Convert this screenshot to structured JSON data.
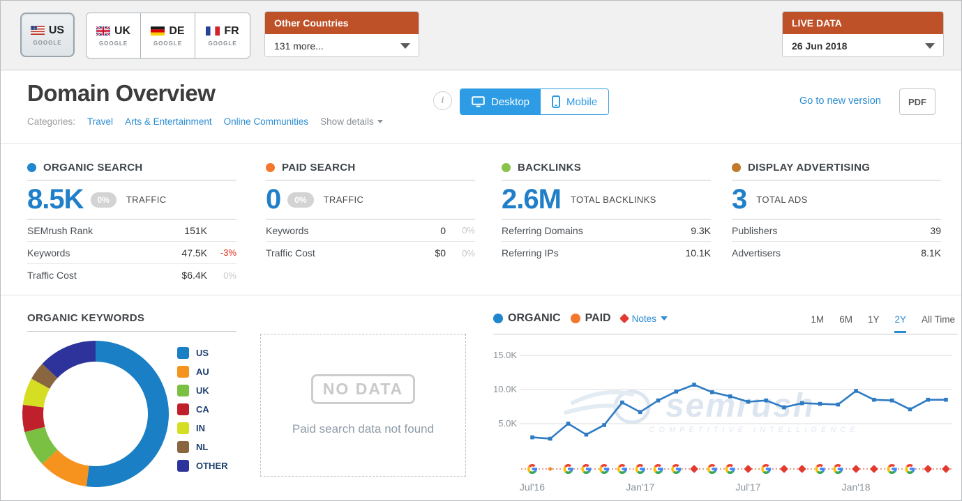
{
  "icons": {
    "info": "i"
  },
  "top_bar": {
    "tabs": [
      {
        "code": "US",
        "engine": "GOOGLE",
        "flag": "us",
        "selected": true
      },
      {
        "code": "UK",
        "engine": "GOOGLE",
        "flag": "uk",
        "selected": false
      },
      {
        "code": "DE",
        "engine": "GOOGLE",
        "flag": "de",
        "selected": false
      },
      {
        "code": "FR",
        "engine": "GOOGLE",
        "flag": "fr",
        "selected": false
      }
    ],
    "other_countries": {
      "title": "Other Countries",
      "value": "131 more..."
    },
    "live_data": {
      "title": "LIVE DATA",
      "value": "26 Jun 2018"
    }
  },
  "header": {
    "title": "Domain Overview",
    "categories_label": "Categories:",
    "categories": [
      "Travel",
      "Arts & Entertainment",
      "Online Communities"
    ],
    "show_details": "Show details",
    "device_toggle": {
      "desktop": "Desktop",
      "mobile": "Mobile",
      "selected": "Desktop"
    },
    "go_to_new_version": "Go to new version",
    "pdf_label": "PDF"
  },
  "metrics": [
    {
      "title": "ORGANIC SEARCH",
      "dot_color": "#2087cc",
      "value": "8.5K",
      "badge": "0%",
      "value_label": "TRAFFIC",
      "rows": [
        {
          "label": "SEMrush Rank",
          "value": "151K",
          "change": "",
          "change_color": ""
        },
        {
          "label": "Keywords",
          "value": "47.5K",
          "change": "-3%",
          "change_color": "#e0301e"
        },
        {
          "label": "Traffic Cost",
          "value": "$6.4K",
          "change": "0%",
          "change_color": "#c7c7c7"
        }
      ]
    },
    {
      "title": "PAID SEARCH",
      "dot_color": "#f4772e",
      "value": "0",
      "badge": "0%",
      "value_label": "TRAFFIC",
      "rows": [
        {
          "label": "Keywords",
          "value": "0",
          "change": "0%",
          "change_color": "#c7c7c7"
        },
        {
          "label": "Traffic Cost",
          "value": "$0",
          "change": "0%",
          "change_color": "#c7c7c7"
        }
      ]
    },
    {
      "title": "BACKLINKS",
      "dot_color": "#8bc34a",
      "value": "2.6M",
      "badge": null,
      "value_label": "TOTAL BACKLINKS",
      "rows": [
        {
          "label": "Referring Domains",
          "value": "9.3K",
          "change": null
        },
        {
          "label": "Referring IPs",
          "value": "10.1K",
          "change": null
        }
      ]
    },
    {
      "title": "DISPLAY ADVERTISING",
      "dot_color": "#c07a2b",
      "value": "3",
      "badge": null,
      "value_label": "TOTAL ADS",
      "rows": [
        {
          "label": "Publishers",
          "value": "39",
          "change": null
        },
        {
          "label": "Advertisers",
          "value": "8.1K",
          "change": null
        }
      ]
    }
  ],
  "organic_keywords": {
    "title": "ORGANIC KEYWORDS"
  },
  "paid_panel": {
    "stamp": "NO DATA",
    "message": "Paid search data not found"
  },
  "trend": {
    "legend": [
      {
        "label": "ORGANIC",
        "color": "#2087cc"
      },
      {
        "label": "PAID",
        "color": "#f4772e"
      }
    ],
    "notes_label": "Notes",
    "ranges": [
      "1M",
      "6M",
      "1Y",
      "2Y",
      "All Time"
    ],
    "selected_range": "2Y",
    "watermark": "semrush",
    "watermark_sub": "COMPETITIVE  INTELLIGENCE"
  },
  "chart_data": [
    {
      "type": "pie",
      "donut": true,
      "title": "ORGANIC KEYWORDS",
      "labels": [
        "US",
        "AU",
        "UK",
        "CA",
        "IN",
        "NL",
        "OTHER"
      ],
      "values": [
        52,
        11,
        8,
        6,
        6,
        4,
        13
      ],
      "colors": [
        "#1a7fc4",
        "#f6921e",
        "#7ac143",
        "#c0202c",
        "#d6de23",
        "#8a6640",
        "#2d339b"
      ],
      "legend_position": "right"
    },
    {
      "type": "line",
      "title": "Organic traffic, 2Y",
      "x": [
        "Jul'16",
        "Aug'16",
        "Sep'16",
        "Oct'16",
        "Nov'16",
        "Dec'16",
        "Jan'17",
        "Feb'17",
        "Mar'17",
        "Apr'17",
        "May'17",
        "Jun'17",
        "Jul'17",
        "Aug'17",
        "Sep'17",
        "Oct'17",
        "Nov'17",
        "Dec'17",
        "Jan'18",
        "Feb'18",
        "Mar'18",
        "Apr'18",
        "May'18",
        "Jun'18"
      ],
      "series": [
        {
          "name": "ORGANIC",
          "color": "#2f7bc3",
          "values_k": [
            3.0,
            2.8,
            5.0,
            3.4,
            4.8,
            8.1,
            6.7,
            8.4,
            9.7,
            10.7,
            9.6,
            9.0,
            8.2,
            8.4,
            7.4,
            8.0,
            7.9,
            7.8,
            9.8,
            8.5,
            8.4,
            7.1,
            8.5,
            8.5
          ]
        }
      ],
      "ylim_k": [
        0,
        15
      ],
      "yticks": [
        {
          "value_k": 5,
          "label": "5.0K"
        },
        {
          "value_k": 10,
          "label": "10.0K"
        },
        {
          "value_k": 15,
          "label": "15.0K"
        }
      ],
      "x_tick_indices": [
        0,
        6,
        12,
        18
      ],
      "grid": true,
      "note_markers": [
        "g",
        "dot",
        "g",
        "g",
        "g",
        "g",
        "g",
        "g",
        "g",
        "note",
        "g",
        "g",
        "note",
        "g",
        "note",
        "note",
        "g",
        "g",
        "note",
        "note",
        "g",
        "g",
        "note",
        "note"
      ],
      "note_colors": {
        "g_blue": "#4285f4",
        "g_green": "#34a853",
        "g_yellow": "#fbbc05",
        "g_red": "#ea4335",
        "note": "#e23a2e",
        "dot": "#f08c3a",
        "connector": "#e2795a"
      }
    }
  ]
}
